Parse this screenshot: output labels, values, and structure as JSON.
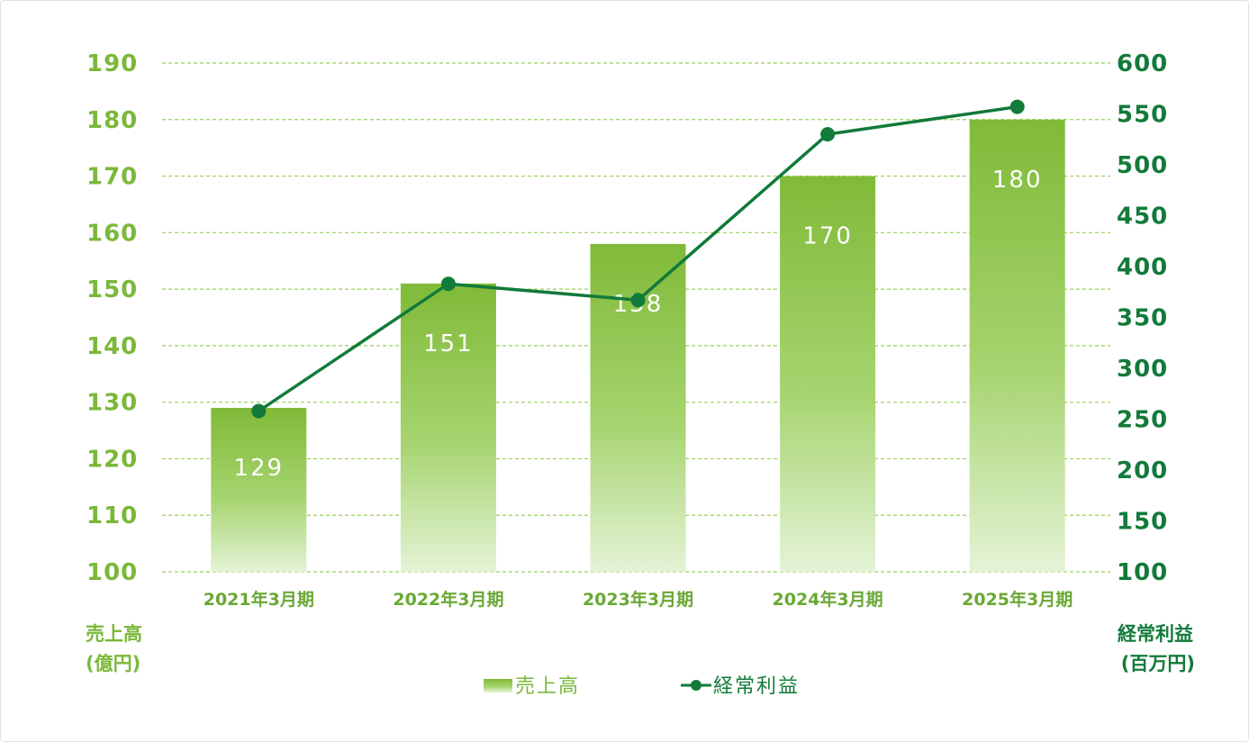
{
  "chart_data": {
    "type": "bar",
    "categories": [
      "2021年3月期",
      "2022年3月期",
      "2023年3月期",
      "2024年3月期",
      "2025年3月期"
    ],
    "series": [
      {
        "name": "売上高",
        "type": "bar",
        "axis": "left",
        "values": [
          129,
          151,
          158,
          170,
          180
        ]
      },
      {
        "name": "経常利益",
        "type": "line",
        "axis": "right",
        "values": [
          258,
          383,
          367,
          530,
          557
        ]
      }
    ],
    "y_left": {
      "label_lines": [
        "売上高",
        "(億円)"
      ],
      "range": [
        100,
        190
      ],
      "ticks": [
        100,
        110,
        120,
        130,
        140,
        150,
        160,
        170,
        180,
        190
      ]
    },
    "y_right": {
      "label_lines": [
        "経常利益",
        "(百万円)"
      ],
      "range": [
        100,
        600
      ],
      "ticks": [
        100,
        150,
        200,
        250,
        300,
        350,
        400,
        450,
        500,
        550,
        600
      ]
    },
    "grid": true,
    "legend_position": "bottom-center",
    "colors": {
      "bar_top": "#80ba38",
      "bar_bottom": "#e4f3d6",
      "line": "#127a3a",
      "grid": "#9bd05a",
      "left_axis": "#7bb83a",
      "right_axis": "#127a3a"
    }
  }
}
